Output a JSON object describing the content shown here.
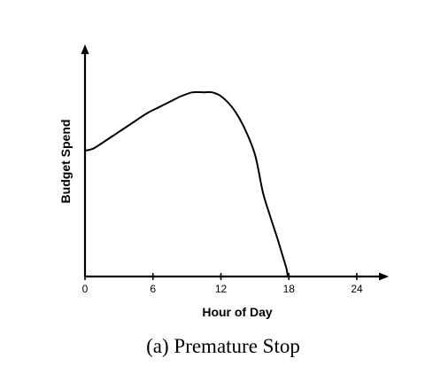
{
  "chart_data": {
    "type": "line",
    "caption": "(a) Premature Stop",
    "xlabel": "Hour of Day",
    "ylabel": "Budget Spend",
    "xlim": [
      0,
      24
    ],
    "ylim": [
      0,
      1
    ],
    "xticks": [
      0,
      6,
      12,
      18,
      24
    ],
    "grid": false,
    "legend": "none",
    "series": [
      {
        "x": [
          0,
          0.7,
          1.5,
          2.5,
          3.5,
          4.5,
          5.5,
          6.5,
          7.5,
          8.5,
          9.5,
          10.5,
          11.2,
          12,
          13,
          14,
          15,
          15.7,
          16.3,
          17,
          17.5,
          17.8,
          17.9
        ],
        "y": [
          0.67,
          0.68,
          0.71,
          0.75,
          0.79,
          0.83,
          0.87,
          0.9,
          0.93,
          0.96,
          0.98,
          0.98,
          0.98,
          0.96,
          0.9,
          0.8,
          0.65,
          0.45,
          0.33,
          0.2,
          0.1,
          0.04,
          0.0
        ]
      }
    ]
  }
}
